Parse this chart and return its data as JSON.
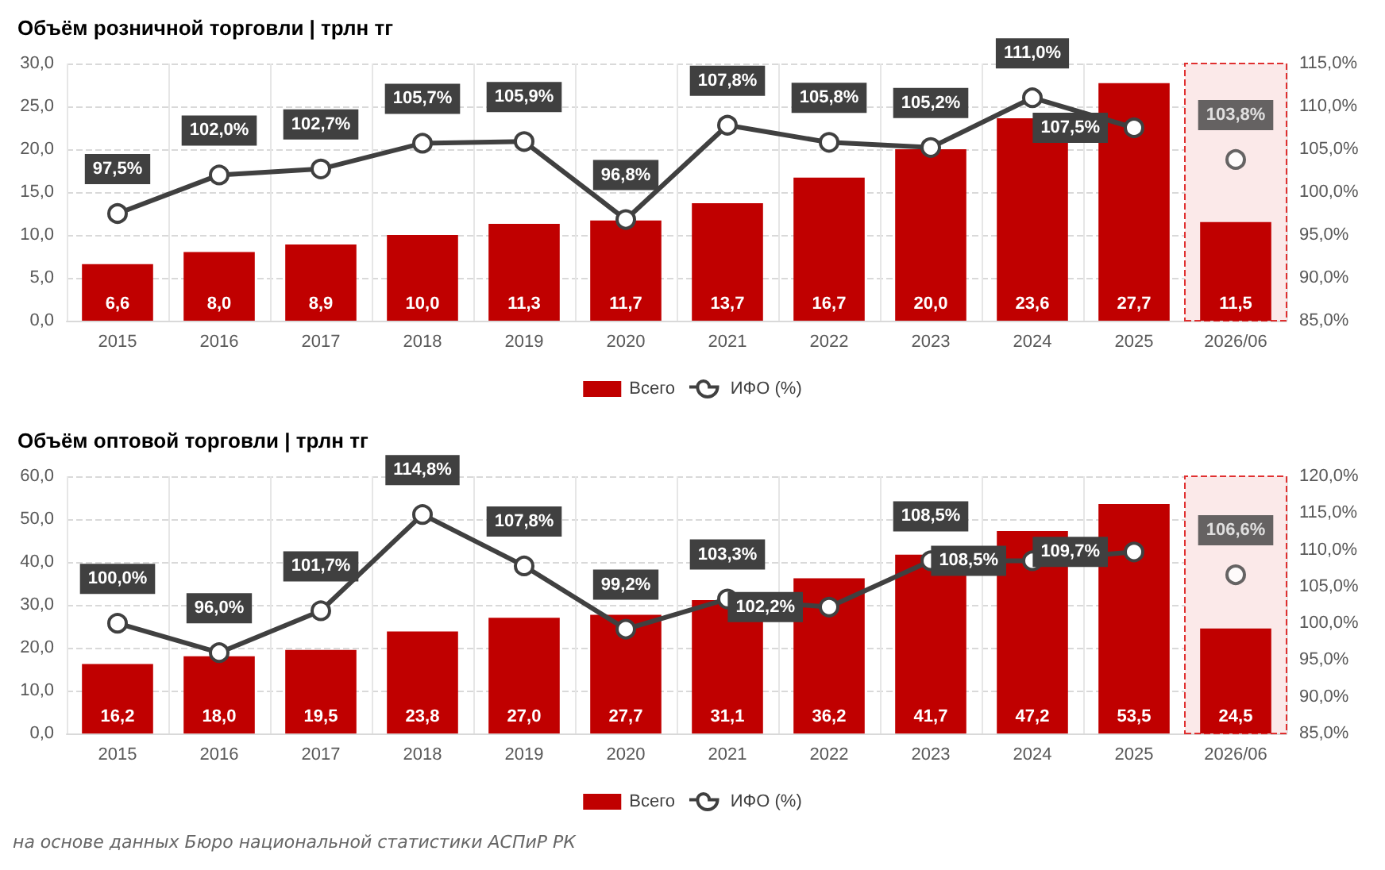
{
  "chart_data": [
    {
      "type": "bar",
      "title": "Объём розничной торговли | трлн тг",
      "categories": [
        "2015",
        "2016",
        "2017",
        "2018",
        "2019",
        "2020",
        "2021",
        "2022",
        "2023",
        "2024",
        "2025",
        "2026/06"
      ],
      "series": [
        {
          "name": "Всего",
          "color": "#c00000",
          "values": [
            6.6,
            8.0,
            8.9,
            10.0,
            11.3,
            11.7,
            13.7,
            16.7,
            20.0,
            23.6,
            27.7,
            11.5
          ],
          "value_labels": [
            "6,6",
            "8,0",
            "8,9",
            "10,0",
            "11,3",
            "11,7",
            "13,7",
            "16,7",
            "20,0",
            "23,6",
            "27,7",
            "11,5"
          ]
        },
        {
          "name": "ИФО (%)",
          "type": "line",
          "axis": "y2",
          "color": "#404040",
          "values": [
            97.5,
            102.0,
            102.7,
            105.7,
            105.9,
            96.8,
            107.8,
            105.8,
            105.2,
            111.0,
            107.5,
            null
          ],
          "value_labels": [
            "97,5%",
            "102,0%",
            "102,7%",
            "105,7%",
            "105,9%",
            "96,8%",
            "107,8%",
            "105,8%",
            "105,2%",
            "111,0%",
            "107,5%",
            null
          ]
        },
        {
          "type": "scatter",
          "axis": "y2",
          "color": "#404040",
          "values": [
            null,
            null,
            null,
            null,
            null,
            null,
            null,
            null,
            null,
            null,
            null,
            103.8
          ],
          "value_labels": [
            null,
            null,
            null,
            null,
            null,
            null,
            null,
            null,
            null,
            null,
            null,
            "103,8%"
          ]
        }
      ],
      "ylim": [
        0,
        30
      ],
      "yticks": [
        {
          "value": 0,
          "label": "0,0"
        },
        {
          "value": 5,
          "label": "5,0"
        },
        {
          "value": 10,
          "label": "10,0"
        },
        {
          "value": 15,
          "label": "15,0"
        },
        {
          "value": 20,
          "label": "20,0"
        },
        {
          "value": 25,
          "label": "25,0"
        },
        {
          "value": 30,
          "label": "30,0"
        }
      ],
      "y2lim": [
        85,
        115
      ],
      "y2ticks": [
        {
          "value": 85,
          "label": "85,0%"
        },
        {
          "value": 90,
          "label": "90,0%"
        },
        {
          "value": 95,
          "label": "95,0%"
        },
        {
          "value": 100,
          "label": "100,0%"
        },
        {
          "value": 105,
          "label": "105,0%"
        },
        {
          "value": 110,
          "label": "110,0%"
        },
        {
          "value": 115,
          "label": "115,0%"
        }
      ],
      "bands": [
        {
          "axis": "x",
          "from": "2026/06",
          "to": "2026/06",
          "color": "#fbe9e9"
        }
      ],
      "marker": "circle",
      "grid": true,
      "legend": "bottom"
    },
    {
      "type": "bar",
      "title": "Объём оптовой торговли | трлн тг",
      "categories": [
        "2015",
        "2016",
        "2017",
        "2018",
        "2019",
        "2020",
        "2021",
        "2022",
        "2023",
        "2024",
        "2025",
        "2026/06"
      ],
      "series": [
        {
          "name": "Всего",
          "color": "#c00000",
          "values": [
            16.2,
            18.0,
            19.5,
            23.8,
            27.0,
            27.7,
            31.1,
            36.2,
            41.7,
            47.2,
            53.5,
            24.5
          ],
          "value_labels": [
            "16,2",
            "18,0",
            "19,5",
            "23,8",
            "27,0",
            "27,7",
            "31,1",
            "36,2",
            "41,7",
            "47,2",
            "53,5",
            "24,5"
          ]
        },
        {
          "name": "ИФО (%)",
          "type": "line",
          "axis": "y2",
          "color": "#404040",
          "values": [
            100.0,
            96.0,
            101.7,
            114.8,
            107.8,
            99.2,
            103.3,
            102.2,
            108.5,
            108.5,
            109.7,
            null
          ],
          "value_labels": [
            "100,0%",
            "96,0%",
            "101,7%",
            "114,8%",
            "107,8%",
            "99,2%",
            "103,3%",
            "102,2%",
            "108,5%",
            "108,5%",
            "109,7%",
            null
          ]
        },
        {
          "type": "scatter",
          "axis": "y2",
          "color": "#404040",
          "values": [
            null,
            null,
            null,
            null,
            null,
            null,
            null,
            null,
            null,
            null,
            null,
            106.6
          ],
          "value_labels": [
            null,
            null,
            null,
            null,
            null,
            null,
            null,
            null,
            null,
            null,
            null,
            "106,6%"
          ]
        }
      ],
      "ylim": [
        0,
        60
      ],
      "yticks": [
        {
          "value": 0,
          "label": "0,0"
        },
        {
          "value": 10,
          "label": "10,0"
        },
        {
          "value": 20,
          "label": "20,0"
        },
        {
          "value": 30,
          "label": "30,0"
        },
        {
          "value": 40,
          "label": "40,0"
        },
        {
          "value": 50,
          "label": "50,0"
        },
        {
          "value": 60,
          "label": "60,0"
        }
      ],
      "y2lim": [
        85,
        120
      ],
      "y2ticks": [
        {
          "value": 85,
          "label": "85,0%"
        },
        {
          "value": 90,
          "label": "90,0%"
        },
        {
          "value": 95,
          "label": "95,0%"
        },
        {
          "value": 100,
          "label": "100,0%"
        },
        {
          "value": 105,
          "label": "105,0%"
        },
        {
          "value": 110,
          "label": "110,0%"
        },
        {
          "value": 115,
          "label": "115,0%"
        },
        {
          "value": 120,
          "label": "120,0%"
        }
      ],
      "bands": [
        {
          "axis": "x",
          "from": "2026/06",
          "to": "2026/06",
          "color": "#fbe9e9"
        }
      ],
      "marker": "circle",
      "grid": true,
      "legend": "bottom",
      "annotations": [
        "на основе данных Бюро национальной статистики АСПиР РК"
      ]
    }
  ]
}
